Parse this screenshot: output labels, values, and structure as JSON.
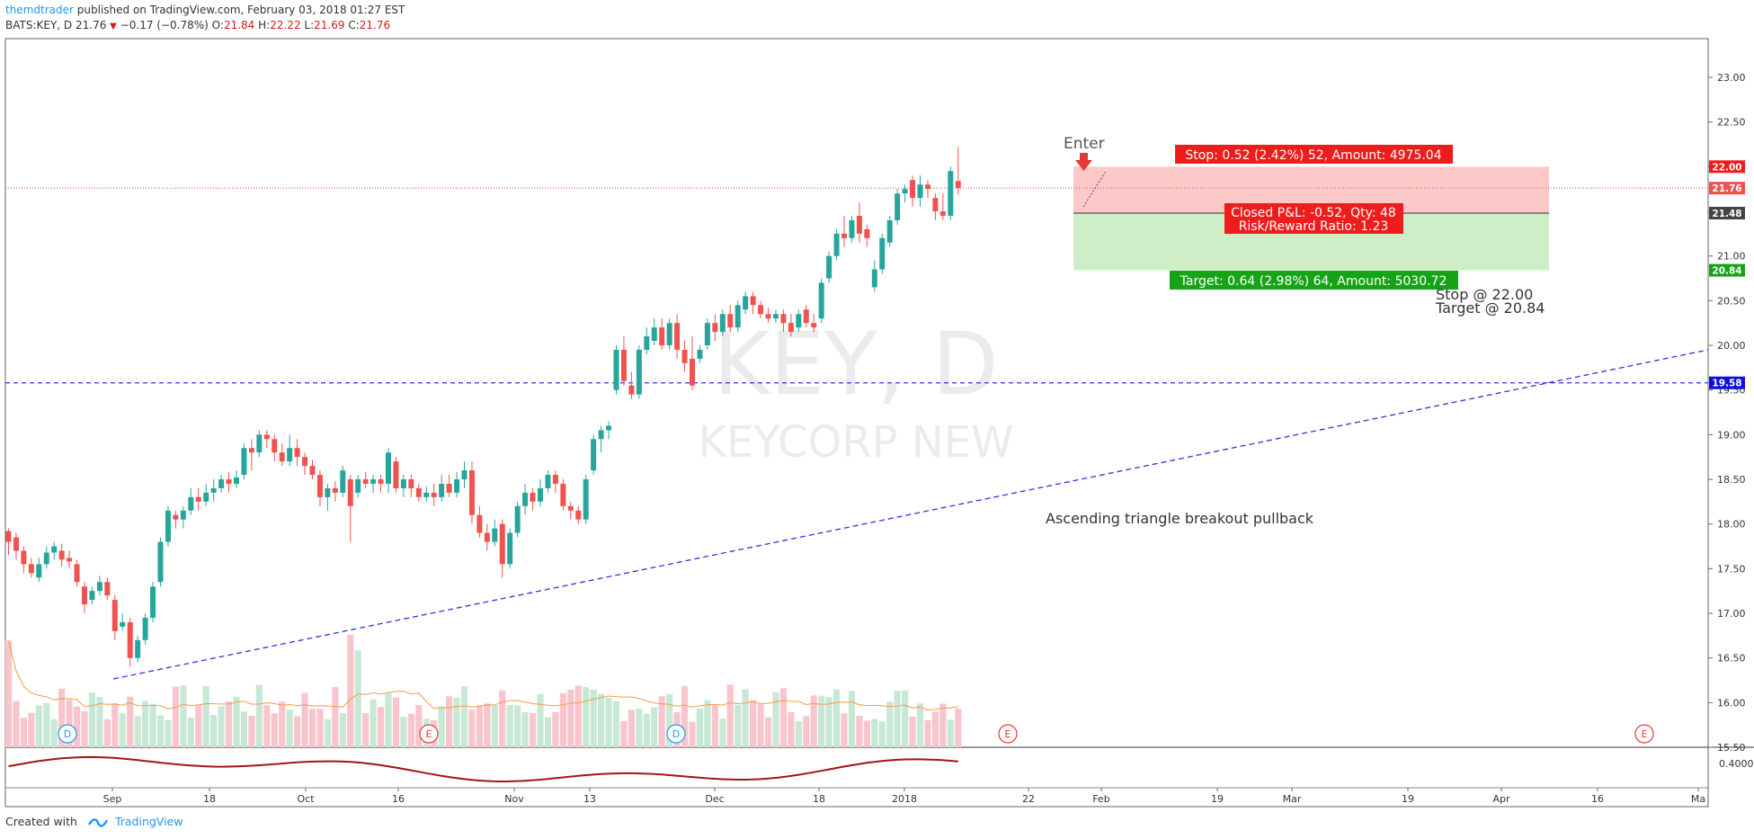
{
  "header": {
    "author": "themdtrader",
    "published_text": "published on TradingView.com, February 03, 2018 01:27 EST",
    "symbol": "BATS:KEY, D",
    "last": "21.76",
    "change": "−0.17 (−0.78%)",
    "o_label": "O:",
    "o": "21.84",
    "h_label": "H:",
    "h": "22.22",
    "l_label": "L:",
    "l": "21.69",
    "c_label": "C:",
    "c": "21.76"
  },
  "watermark": {
    "ticker": "KEY, D",
    "name": "KEYCORP NEW"
  },
  "footer": {
    "created_with": "Created with",
    "brand": "TradingView"
  },
  "colors": {
    "up": "#26a69a",
    "down": "#ef5350",
    "up_vol": "#c8e8d6",
    "down_vol": "#f8c5cc",
    "stop_zone": "#fcc8c8",
    "target_zone": "#cdeec6",
    "trendline": "#3232e0",
    "osc": "#a31515"
  },
  "chart_data": {
    "type": "candlestick",
    "symbol": "BATS:KEY",
    "interval": "D",
    "y_range": [
      15.45,
      23.35
    ],
    "price_ticks": [
      "23.00",
      "22.50",
      "22.00",
      "21.50",
      "21.00",
      "20.50",
      "20.00",
      "19.50",
      "19.00",
      "18.50",
      "18.00",
      "17.50",
      "17.00",
      "16.50",
      "16.00",
      "15.50"
    ],
    "x_labels": [
      "Sep",
      "18",
      "Oct",
      "16",
      "Nov",
      "13",
      "Dec",
      "18",
      "2018",
      "22",
      "Feb",
      "19",
      "Mar",
      "19",
      "Apr",
      "16",
      "Ma"
    ],
    "candles": [
      [
        17.92,
        17.8,
        17.65,
        17.95
      ],
      [
        17.85,
        17.7,
        17.6,
        17.9
      ],
      [
        17.7,
        17.55,
        17.45,
        17.75
      ],
      [
        17.55,
        17.45,
        17.4,
        17.62
      ],
      [
        17.4,
        17.55,
        17.35,
        17.62
      ],
      [
        17.55,
        17.68,
        17.5,
        17.75
      ],
      [
        17.68,
        17.75,
        17.6,
        17.8
      ],
      [
        17.7,
        17.6,
        17.52,
        17.78
      ],
      [
        17.62,
        17.58,
        17.5,
        17.7
      ],
      [
        17.55,
        17.35,
        17.3,
        17.6
      ],
      [
        17.3,
        17.1,
        17.0,
        17.35
      ],
      [
        17.15,
        17.25,
        17.1,
        17.3
      ],
      [
        17.25,
        17.35,
        17.2,
        17.42
      ],
      [
        17.35,
        17.2,
        17.15,
        17.4
      ],
      [
        17.15,
        16.8,
        16.7,
        17.2
      ],
      [
        16.85,
        16.9,
        16.8,
        17.0
      ],
      [
        16.9,
        16.5,
        16.4,
        16.95
      ],
      [
        16.5,
        16.7,
        16.45,
        16.75
      ],
      [
        16.7,
        16.95,
        16.65,
        17.0
      ],
      [
        16.95,
        17.3,
        16.9,
        17.35
      ],
      [
        17.35,
        17.8,
        17.3,
        17.85
      ],
      [
        17.8,
        18.15,
        17.75,
        18.2
      ],
      [
        18.1,
        18.05,
        17.95,
        18.15
      ],
      [
        18.05,
        18.15,
        17.95,
        18.2
      ],
      [
        18.15,
        18.3,
        18.1,
        18.4
      ],
      [
        18.3,
        18.25,
        18.15,
        18.4
      ],
      [
        18.25,
        18.35,
        18.2,
        18.45
      ],
      [
        18.35,
        18.4,
        18.25,
        18.5
      ],
      [
        18.4,
        18.5,
        18.35,
        18.55
      ],
      [
        18.5,
        18.45,
        18.35,
        18.58
      ],
      [
        18.45,
        18.52,
        18.4,
        18.6
      ],
      [
        18.55,
        18.85,
        18.5,
        18.9
      ],
      [
        18.85,
        18.8,
        18.6,
        18.95
      ],
      [
        18.8,
        19.0,
        18.75,
        19.05
      ],
      [
        19.0,
        18.95,
        18.85,
        19.05
      ],
      [
        18.95,
        18.8,
        18.7,
        19.0
      ],
      [
        18.8,
        18.7,
        18.65,
        18.9
      ],
      [
        18.7,
        18.85,
        18.65,
        19.0
      ],
      [
        18.85,
        18.75,
        18.65,
        18.95
      ],
      [
        18.75,
        18.65,
        18.55,
        18.8
      ],
      [
        18.65,
        18.55,
        18.5,
        18.72
      ],
      [
        18.55,
        18.3,
        18.2,
        18.6
      ],
      [
        18.3,
        18.4,
        18.15,
        18.45
      ],
      [
        18.4,
        18.35,
        18.25,
        18.48
      ],
      [
        18.35,
        18.6,
        18.3,
        18.65
      ],
      [
        18.5,
        18.2,
        17.8,
        18.55
      ],
      [
        18.35,
        18.5,
        18.3,
        18.55
      ],
      [
        18.5,
        18.45,
        18.4,
        18.58
      ],
      [
        18.45,
        18.5,
        18.35,
        18.55
      ],
      [
        18.5,
        18.45,
        18.35,
        18.55
      ],
      [
        18.45,
        18.8,
        18.35,
        18.85
      ],
      [
        18.7,
        18.4,
        18.35,
        18.75
      ],
      [
        18.4,
        18.5,
        18.3,
        18.55
      ],
      [
        18.5,
        18.4,
        18.3,
        18.55
      ],
      [
        18.4,
        18.3,
        18.25,
        18.45
      ],
      [
        18.3,
        18.35,
        18.25,
        18.42
      ],
      [
        18.35,
        18.3,
        18.2,
        18.45
      ],
      [
        18.3,
        18.45,
        18.25,
        18.55
      ],
      [
        18.45,
        18.35,
        18.3,
        18.55
      ],
      [
        18.35,
        18.5,
        18.3,
        18.58
      ],
      [
        18.5,
        18.6,
        18.4,
        18.7
      ],
      [
        18.6,
        18.1,
        18.0,
        18.7
      ],
      [
        18.1,
        17.9,
        17.85,
        18.2
      ],
      [
        17.9,
        17.8,
        17.7,
        18.0
      ],
      [
        17.8,
        17.95,
        17.75,
        18.05
      ],
      [
        18.0,
        17.55,
        17.4,
        18.05
      ],
      [
        17.55,
        17.9,
        17.5,
        17.95
      ],
      [
        17.9,
        18.2,
        17.85,
        18.25
      ],
      [
        18.2,
        18.35,
        18.1,
        18.45
      ],
      [
        18.35,
        18.25,
        18.15,
        18.4
      ],
      [
        18.25,
        18.4,
        18.2,
        18.5
      ],
      [
        18.4,
        18.55,
        18.35,
        18.6
      ],
      [
        18.55,
        18.45,
        18.35,
        18.6
      ],
      [
        18.45,
        18.2,
        18.15,
        18.5
      ],
      [
        18.2,
        18.15,
        18.05,
        18.25
      ],
      [
        18.15,
        18.05,
        18.0,
        18.2
      ],
      [
        18.05,
        18.5,
        18.0,
        18.55
      ],
      [
        18.6,
        18.95,
        18.55,
        19.0
      ],
      [
        18.95,
        19.05,
        18.8,
        19.1
      ],
      [
        19.05,
        19.1,
        18.95,
        19.15
      ],
      [
        19.5,
        19.95,
        19.45,
        20.0
      ],
      [
        19.95,
        19.6,
        19.55,
        20.1
      ],
      [
        19.55,
        19.45,
        19.4,
        19.7
      ],
      [
        19.45,
        19.95,
        19.4,
        20.0
      ],
      [
        19.95,
        20.1,
        19.9,
        20.2
      ],
      [
        20.05,
        20.2,
        20.0,
        20.3
      ],
      [
        20.2,
        20.0,
        19.95,
        20.3
      ],
      [
        20.0,
        20.25,
        19.95,
        20.3
      ],
      [
        20.25,
        19.95,
        19.85,
        20.35
      ],
      [
        19.95,
        19.8,
        19.7,
        20.05
      ],
      [
        19.85,
        19.55,
        19.5,
        20.1
      ],
      [
        19.85,
        19.95,
        19.8,
        20.0
      ],
      [
        20.0,
        20.25,
        19.95,
        20.3
      ],
      [
        20.25,
        20.15,
        20.05,
        20.35
      ],
      [
        20.15,
        20.35,
        20.1,
        20.4
      ],
      [
        20.35,
        20.2,
        20.15,
        20.45
      ],
      [
        20.2,
        20.45,
        20.15,
        20.5
      ],
      [
        20.4,
        20.55,
        20.35,
        20.6
      ],
      [
        20.55,
        20.45,
        20.35,
        20.6
      ],
      [
        20.45,
        20.35,
        20.3,
        20.5
      ],
      [
        20.35,
        20.3,
        20.25,
        20.42
      ],
      [
        20.3,
        20.35,
        20.25,
        20.4
      ],
      [
        20.35,
        20.25,
        20.15,
        20.4
      ],
      [
        20.25,
        20.15,
        20.1,
        20.35
      ],
      [
        20.2,
        20.35,
        20.15,
        20.4
      ],
      [
        20.4,
        20.25,
        20.2,
        20.45
      ],
      [
        20.25,
        20.2,
        20.15,
        20.35
      ],
      [
        20.3,
        20.7,
        20.25,
        20.75
      ],
      [
        20.75,
        21.0,
        20.7,
        21.05
      ],
      [
        21.0,
        21.25,
        20.95,
        21.3
      ],
      [
        21.25,
        21.2,
        21.1,
        21.45
      ],
      [
        21.2,
        21.4,
        21.15,
        21.45
      ],
      [
        21.45,
        21.25,
        21.15,
        21.6
      ],
      [
        21.3,
        21.2,
        21.1,
        21.35
      ],
      [
        20.65,
        20.85,
        20.6,
        20.95
      ],
      [
        20.85,
        21.2,
        20.8,
        21.25
      ],
      [
        21.15,
        21.4,
        21.1,
        21.45
      ],
      [
        21.4,
        21.7,
        21.35,
        21.75
      ],
      [
        21.7,
        21.75,
        21.6,
        21.8
      ],
      [
        21.85,
        21.65,
        21.55,
        21.9
      ],
      [
        21.65,
        21.8,
        21.55,
        21.9
      ],
      [
        21.8,
        21.75,
        21.65,
        21.85
      ],
      [
        21.65,
        21.5,
        21.4,
        21.7
      ],
      [
        21.5,
        21.45,
        21.4,
        21.7
      ],
      [
        21.45,
        21.95,
        21.4,
        22.0
      ],
      [
        21.84,
        21.76,
        21.69,
        22.22
      ]
    ],
    "volume_ma_note": "volume with moving average",
    "annotations": {
      "enter_label": "Enter",
      "stop_label": "Stop: 0.52 (2.42%) 52, Amount: 4975.04",
      "closed_label": "Closed P&L: -0.52, Qty: 48",
      "rr_label": "Risk/Reward Ratio: 1.23",
      "target_label": "Target: 0.64 (2.98%) 64, Amount: 5030.72",
      "note_stop": "Stop @ 22.00",
      "note_target": "Target @ 20.84",
      "pattern_note": "Ascending triangle breakout pullback",
      "stop_price": 22.0,
      "entry_price": 21.48,
      "target_price": 20.84,
      "horizontal_level": 19.58,
      "last_price": 21.76
    },
    "price_badges": {
      "stop": "22.00",
      "last": "21.76",
      "entry": "21.48",
      "target": "20.84",
      "level": "19.58"
    },
    "oscillator_label": "0.4000",
    "event_markers": [
      "D",
      "E",
      "D",
      "E",
      "E"
    ]
  }
}
